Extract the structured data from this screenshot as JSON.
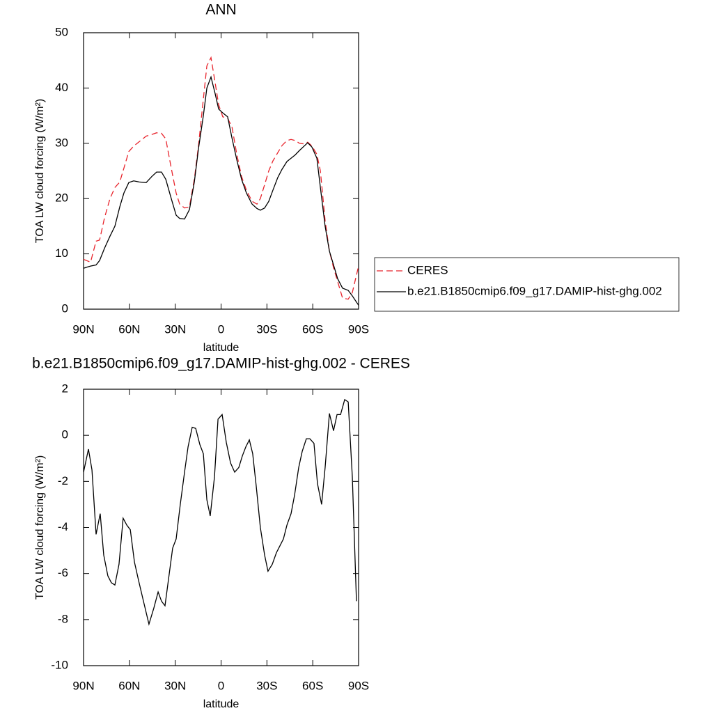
{
  "chart_data": [
    {
      "type": "line",
      "title": "ANN",
      "xlabel": "latitude",
      "ylabel": "TOA LW cloud forcing (W/m²)",
      "x": [
        90,
        85.4,
        81.8,
        79.5,
        76.3,
        72.7,
        69.5,
        66.3,
        63.6,
        60.4,
        57.2,
        53.5,
        49.0,
        45.3,
        42.2,
        39.0,
        36.2,
        32.6,
        29.4,
        27.1,
        23.9,
        20.7,
        17.5,
        14.8,
        11.6,
        9.3,
        6.6,
        3.9,
        1.6,
        -1.1,
        -4.3,
        -7.1,
        -10.3,
        -13.4,
        -16.6,
        -20.3,
        -23.5,
        -25.7,
        -28.5,
        -31.2,
        -33.9,
        -37.1,
        -39.9,
        -43.1,
        -45.8,
        -48.5,
        -51.3,
        -54.0,
        -56.7,
        -59.5,
        -62.7,
        -65.0,
        -68.1,
        -70.9,
        -73.6,
        -76.3,
        -79.5,
        -83.2,
        -85.9,
        -90
      ],
      "series": [
        {
          "name": "CERES",
          "color": "#e8242c",
          "dash": true,
          "values": [
            9.0,
            8.5,
            12.3,
            12.5,
            16.5,
            20,
            22,
            23,
            25.5,
            28.5,
            29.5,
            30.3,
            31.3,
            31.6,
            31.9,
            31.8,
            30.8,
            25.5,
            21,
            19,
            18.3,
            18.5,
            23.5,
            29.5,
            38,
            44,
            45.5,
            41,
            37,
            34.8,
            34.5,
            33,
            28,
            24,
            21.5,
            19.5,
            19,
            20,
            22.5,
            25,
            26.8,
            28.3,
            29.6,
            30.5,
            30.7,
            30.5,
            30,
            29.9,
            30.2,
            29.5,
            28,
            25,
            16,
            10.5,
            7.5,
            5,
            2,
            1.8,
            3,
            7.8
          ]
        },
        {
          "name": "b.e21.B1850cmip6.f09_g17.DAMIP-hist-ghg.002",
          "color": "#000000",
          "dash": false,
          "values": [
            7.4,
            7.8,
            8.0,
            8.8,
            11,
            13.2,
            15,
            18.5,
            21,
            22.9,
            23.2,
            23.0,
            22.9,
            24,
            24.8,
            24.8,
            23.5,
            20,
            17,
            16.4,
            16.3,
            18,
            23,
            29,
            35,
            40,
            42,
            39,
            36.2,
            35.5,
            34.8,
            31,
            27,
            23.5,
            21,
            19,
            18.2,
            17.9,
            18.3,
            19.5,
            21.5,
            23.8,
            25.3,
            26.7,
            27.3,
            27.9,
            28.7,
            29.4,
            30.1,
            29.3,
            27.3,
            22,
            15,
            10.5,
            8,
            5.5,
            3.8,
            3.4,
            2.4,
            0.7
          ]
        }
      ],
      "xlim": [
        90,
        -90
      ],
      "xticks": [
        {
          "value": 90,
          "label": "90N"
        },
        {
          "value": 60,
          "label": "60N"
        },
        {
          "value": 30,
          "label": "30N"
        },
        0,
        {
          "value": -30,
          "label": "30S"
        },
        {
          "value": -60,
          "label": "60S"
        },
        {
          "value": -90,
          "label": "90S"
        }
      ],
      "ylim": [
        0,
        50
      ],
      "yticks": [
        0,
        10,
        20,
        30,
        40,
        50
      ],
      "legend": "outside-right"
    },
    {
      "type": "line",
      "title": "b.e21.B1850cmip6.f09_g17.DAMIP-hist-ghg.002 - CERES",
      "xlabel": "latitude",
      "ylabel": "TOA LW cloud forcing (W/m²)",
      "x": [
        90,
        86.8,
        84.5,
        81.8,
        79.1,
        76.8,
        74.1,
        71.8,
        69.5,
        66.8,
        64.1,
        61.7,
        59.4,
        56.7,
        54.0,
        50.8,
        47.2,
        44.0,
        41.2,
        39.0,
        36.7,
        31.7,
        29.4,
        26.7,
        23.9,
        21.6,
        18.9,
        16.6,
        13.9,
        11.6,
        9.3,
        7.1,
        4.3,
        2.0,
        -0.7,
        -3.4,
        -6.2,
        -8.9,
        -11.6,
        -13.9,
        -16.2,
        -18.5,
        -20.7,
        -23.0,
        -25.7,
        -28.5,
        -30.7,
        -33.5,
        -36.2,
        -38.5,
        -40.8,
        -43.1,
        -45.8,
        -48.1,
        -50.8,
        -53.1,
        -55.8,
        -58.1,
        -60.8,
        -63.1,
        -65.8,
        -68.1,
        -70.9,
        -73.6,
        -75.9,
        -78.2,
        -80.9,
        -83.2,
        -85.9,
        -88.6
      ],
      "values": [
        -1.6,
        -0.6,
        -1.5,
        -4.3,
        -3.4,
        -5.2,
        -6.1,
        -6.4,
        -6.5,
        -5.6,
        -3.6,
        -3.9,
        -4.1,
        -5.5,
        -6.3,
        -7.2,
        -8.2,
        -7.5,
        -6.8,
        -7.2,
        -7.4,
        -4.9,
        -4.5,
        -3.0,
        -1.6,
        -0.5,
        0.35,
        0.3,
        -0.4,
        -0.8,
        -2.8,
        -3.5,
        -1.8,
        0.7,
        0.9,
        -0.3,
        -1.2,
        -1.6,
        -1.4,
        -0.9,
        -0.5,
        -0.2,
        -0.8,
        -2.2,
        -4.0,
        -5.2,
        -5.9,
        -5.6,
        -5.1,
        -4.8,
        -4.5,
        -3.9,
        -3.4,
        -2.6,
        -1.4,
        -0.7,
        -0.15,
        -0.15,
        -0.35,
        -2.1,
        -3.0,
        -1.4,
        0.95,
        0.2,
        0.9,
        0.9,
        1.55,
        1.45,
        -1.8,
        -7.2
      ],
      "color": "#000000",
      "xlim": [
        90,
        -90
      ],
      "xticks": [
        {
          "value": 90,
          "label": "90N"
        },
        {
          "value": 60,
          "label": "60N"
        },
        {
          "value": 30,
          "label": "30N"
        },
        0,
        {
          "value": -30,
          "label": "30S"
        },
        {
          "value": -60,
          "label": "60S"
        },
        {
          "value": -90,
          "label": "90S"
        }
      ],
      "ylim": [
        -10,
        2
      ],
      "yticks": [
        -10,
        -8,
        -6,
        -4,
        -2,
        0,
        2
      ]
    }
  ]
}
